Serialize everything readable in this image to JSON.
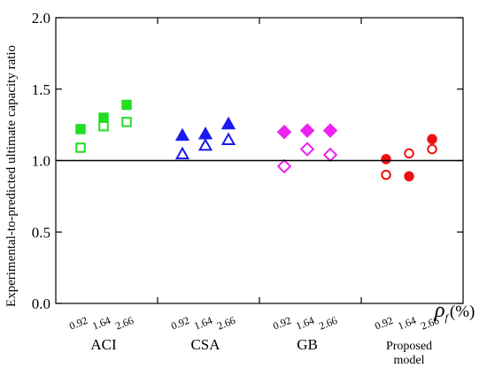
{
  "chart_data": {
    "type": "scatter",
    "title": "",
    "ylabel": "Experimental-to-predicted ultimate capacity ratio",
    "xlabel": {
      "symbol": "ρ",
      "subscript": "f",
      "unit": "(%)"
    },
    "ylim": [
      0.0,
      2.0
    ],
    "yticks": [
      "0.0",
      "0.5",
      "1.0",
      "1.5",
      "2.0"
    ],
    "reference_line": 1.0,
    "rho_values": [
      "0.92",
      "1.64",
      "2.66"
    ],
    "groups": [
      {
        "label": "ACI",
        "color": "#22dd22",
        "marker": "square",
        "closed": [
          1.22,
          1.3,
          1.39
        ],
        "open": [
          1.09,
          1.24,
          1.27
        ]
      },
      {
        "label": "CSA",
        "color": "#1a1aee",
        "marker": "triangle",
        "closed": [
          1.18,
          1.19,
          1.26
        ],
        "open": [
          1.05,
          1.11,
          1.15
        ]
      },
      {
        "label": "GB",
        "color": "#ee22ee",
        "marker": "diamond",
        "closed": [
          1.2,
          1.21,
          1.21
        ],
        "open": [
          0.96,
          1.08,
          1.04
        ]
      },
      {
        "label": "Proposed model",
        "label_lines": [
          "Proposed",
          "model"
        ],
        "color": "#ee1111",
        "marker": "circle",
        "closed": [
          1.01,
          0.89,
          1.15
        ],
        "open": [
          0.9,
          1.05,
          1.08
        ]
      }
    ]
  }
}
